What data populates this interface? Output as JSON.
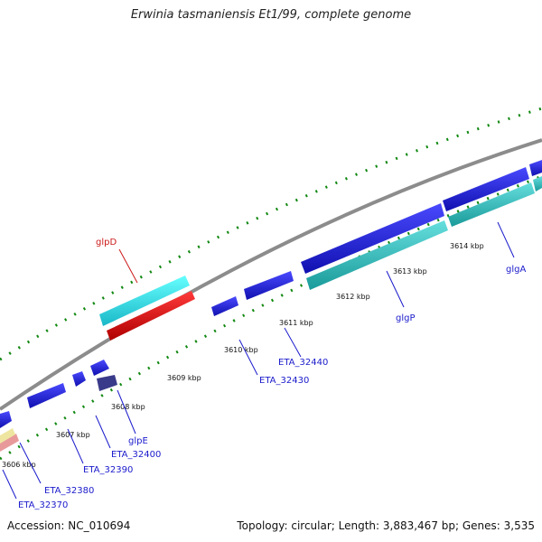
{
  "title": "Erwinia tasmaniensis Et1/99, complete genome",
  "footer": {
    "accession": "Accession: NC_010694",
    "topology": "Topology: circular; Length: 3,883,467 bp; Genes: 3,535"
  },
  "colors": {
    "backbone": "#8c8c8c",
    "cds_blue": "#1a1ae6",
    "cds_cyan": "#33e6e6",
    "cds_teal": "#33c0c0",
    "cds_red": "#e61a1a",
    "cds_navy": "#3a3a8a",
    "cds_pink": "#e89a9a",
    "cds_cream": "#eee6a0",
    "tick": "#118811",
    "label_blue": "#1a1acc",
    "label_red": "#cc1a1a"
  },
  "kbp_ticks": [
    "3606 kbp",
    "3607 kbp",
    "3608 kbp",
    "3609 kbp",
    "3610 kbp",
    "3611 kbp",
    "3612 kbp",
    "3613 kbp",
    "3614 kbp"
  ],
  "genes": [
    "glpD",
    "glpE",
    "ETA_32370",
    "ETA_32380",
    "ETA_32390",
    "ETA_32400",
    "ETA_32430",
    "ETA_32440",
    "glgP",
    "glgA"
  ]
}
